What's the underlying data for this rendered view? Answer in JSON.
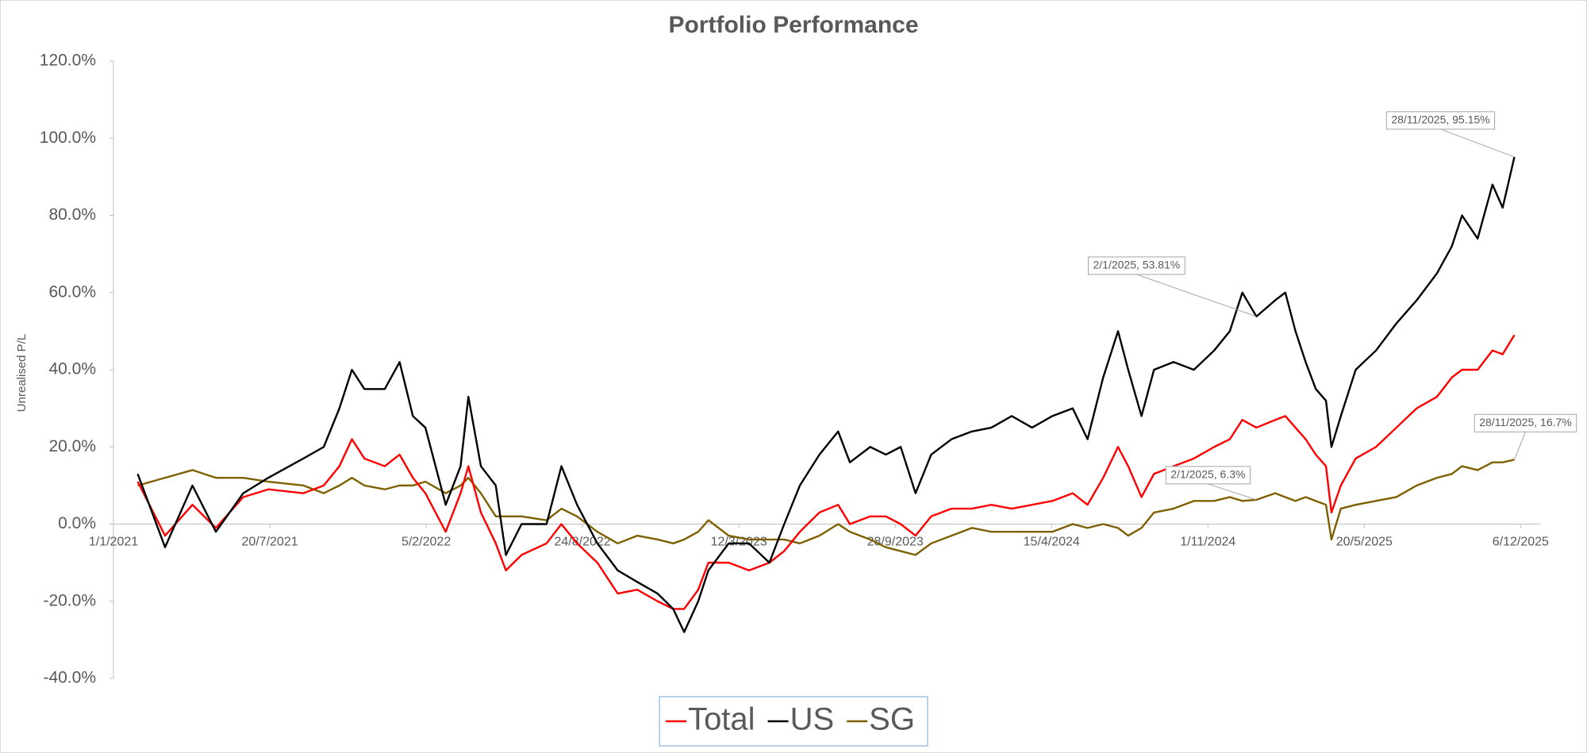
{
  "chart_data": {
    "type": "line",
    "title": "Portfolio Performance",
    "y_label": "Unrealised P/L",
    "x": [
      "1/2/2021",
      "8/3/2021",
      "12/4/2021",
      "12/5/2021",
      "16/6/2021",
      "18/7/2021",
      "1/9/2021",
      "27/9/2021",
      "17/10/2021",
      "2/11/2021",
      "18/11/2021",
      "14/12/2021",
      "2/1/2022",
      "19/1/2022",
      "4/2/2022",
      "2/3/2022",
      "21/3/2022",
      "31/3/2022",
      "16/4/2022",
      "5/5/2022",
      "18/5/2022",
      "7/6/2022",
      "9/7/2022",
      "28/7/2022",
      "17/8/2022",
      "12/9/2022",
      "8/10/2022",
      "2/11/2022",
      "28/11/2022",
      "18/12/2022",
      "1/1/2023",
      "19/1/2023",
      "1/2/2023",
      "27/2/2023",
      "25/3/2023",
      "20/4/2023",
      "9/5/2023",
      "29/5/2023",
      "23/6/2023",
      "17/7/2023",
      "1/8/2023",
      "27/8/2023",
      "16/9/2023",
      "5/10/2023",
      "24/10/2023",
      "13/11/2023",
      "9/12/2023",
      "4/1/2024",
      "29/1/2024",
      "24/2/2024",
      "21/3/2024",
      "16/4/2024",
      "12/5/2024",
      "31/5/2024",
      "20/6/2024",
      "9/7/2024",
      "22/7/2024",
      "8/8/2024",
      "24/8/2024",
      "18/9/2024",
      "14/10/2024",
      "9/11/2024",
      "29/11/2024",
      "15/12/2024",
      "2/1/2025",
      "26/1/2025",
      "8/2/2025",
      "21/2/2025",
      "6/3/2025",
      "19/3/2025",
      "1/4/2025",
      "8/4/2025",
      "20/4/2025",
      "9/5/2025",
      "4/6/2025",
      "30/6/2025",
      "26/7/2025",
      "21/8/2025",
      "9/9/2025",
      "22/9/2025",
      "12/10/2025",
      "31/10/2025",
      "13/11/2025",
      "28/11/2025"
    ],
    "series": [
      {
        "name": "Total",
        "color": "#ff0000",
        "values": [
          11,
          -3,
          5,
          -1,
          7,
          9,
          8,
          10,
          15,
          22,
          17,
          15,
          18,
          12,
          8,
          -2,
          8,
          15,
          3,
          -5,
          -12,
          -8,
          -5,
          0,
          -5,
          -10,
          -18,
          -17,
          -20,
          -22,
          -22,
          -17,
          -10,
          -10,
          -12,
          -10,
          -7,
          -2,
          3,
          5,
          0,
          2,
          2,
          0,
          -3,
          2,
          4,
          4,
          5,
          4,
          5,
          6,
          8,
          5,
          12,
          20,
          15,
          7,
          13,
          15,
          17,
          20,
          22,
          27,
          25,
          27,
          28,
          25,
          22,
          18,
          15,
          3,
          10,
          17,
          20,
          25,
          30,
          33,
          38,
          40,
          40,
          45,
          44,
          49
        ]
      },
      {
        "name": "US",
        "color": "#000000",
        "values": [
          13,
          -6,
          10,
          -2,
          8,
          12,
          17,
          20,
          30,
          40,
          35,
          35,
          42,
          28,
          25,
          5,
          15,
          33,
          15,
          10,
          -8,
          0,
          0,
          15,
          5,
          -5,
          -12,
          -15,
          -18,
          -22,
          -28,
          -20,
          -12,
          -5,
          -5,
          -10,
          0,
          10,
          18,
          24,
          16,
          20,
          18,
          20,
          8,
          18,
          22,
          24,
          25,
          28,
          25,
          28,
          30,
          22,
          38,
          50,
          40,
          28,
          40,
          42,
          40,
          45,
          50,
          60,
          53.81,
          58,
          60,
          50,
          42,
          35,
          32,
          20,
          28,
          40,
          45,
          52,
          58,
          65,
          72,
          80,
          74,
          88,
          82,
          95.15
        ]
      },
      {
        "name": "SG",
        "color": "#7f6000",
        "values": [
          10,
          12,
          14,
          12,
          12,
          11,
          10,
          8,
          10,
          12,
          10,
          9,
          10,
          10,
          11,
          8,
          10,
          12,
          8,
          2,
          2,
          2,
          1,
          4,
          2,
          -2,
          -5,
          -3,
          -4,
          -5,
          -4,
          -2,
          1,
          -3,
          -4,
          -4,
          -4,
          -5,
          -3,
          0,
          -2,
          -4,
          -6,
          -7,
          -8,
          -5,
          -3,
          -1,
          -2,
          -2,
          -2,
          -2,
          0,
          -1,
          0,
          -1,
          -3,
          -1,
          3,
          4,
          6,
          6,
          7,
          6,
          6.3,
          8,
          7,
          6,
          7,
          6,
          5,
          -4,
          4,
          5,
          6,
          7,
          10,
          12,
          13,
          15,
          14,
          16,
          16,
          16.7
        ]
      }
    ],
    "annotations": [
      {
        "text": "28/11/2025, 95.15%",
        "x": "28/11/2025",
        "y": 95.15
      },
      {
        "text": "2/1/2025, 53.81%",
        "x": "2/1/2025",
        "y": 53.81
      },
      {
        "text": "28/11/2025, 16.7%",
        "x": "28/11/2025",
        "y": 16.7
      },
      {
        "text": "2/1/2025, 6.3%",
        "x": "2/1/2025",
        "y": 6.3
      }
    ],
    "xlim": [
      "1/1/2021",
      "31/12/2025"
    ],
    "xticks": [
      "1/1/2021",
      "20/7/2021",
      "5/2/2022",
      "24/8/2022",
      "12/3/2023",
      "28/9/2023",
      "15/4/2024",
      "1/11/2024",
      "20/5/2025",
      "6/12/2025"
    ],
    "ylim": [
      -40,
      120
    ],
    "yticks": [
      {
        "value": -40,
        "label": "-40.0%"
      },
      {
        "value": -20,
        "label": "-20.0%"
      },
      {
        "value": 0,
        "label": "0.0%"
      },
      {
        "value": 20,
        "label": "20.0%"
      },
      {
        "value": 40,
        "label": "40.0%"
      },
      {
        "value": 60,
        "label": "60.0%"
      },
      {
        "value": 80,
        "label": "80.0%"
      },
      {
        "value": 100,
        "label": "100.0%"
      },
      {
        "value": 120,
        "label": "120.0%"
      }
    ],
    "grid": false,
    "legend": "bottom"
  }
}
